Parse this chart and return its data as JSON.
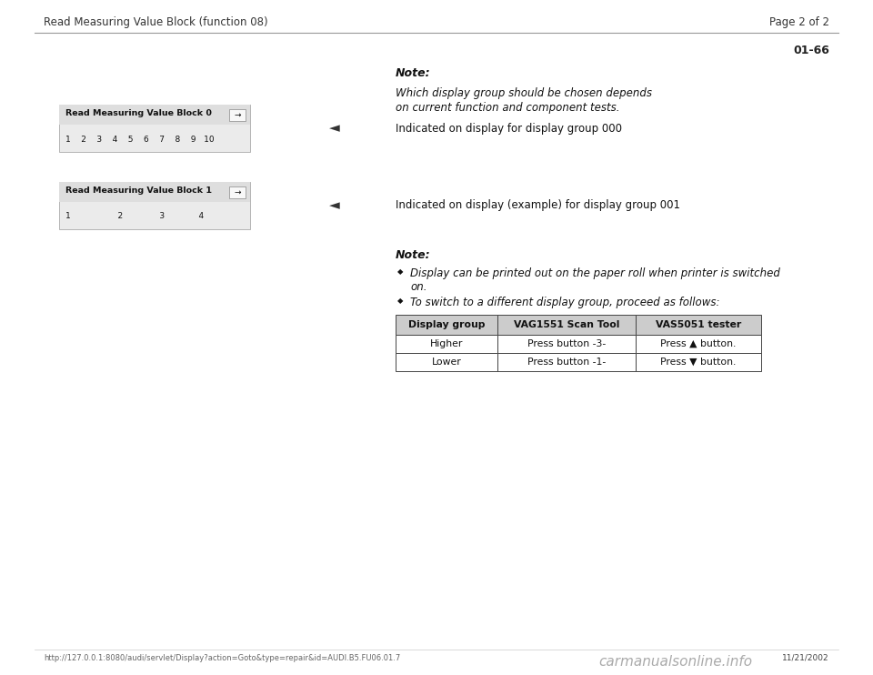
{
  "bg_color": "#ffffff",
  "header_title": "Read Measuring Value Block (function 08)",
  "header_right": "Page 2 of 2",
  "page_num": "01-66",
  "note_bold": "Note:",
  "note_text_line1": "Which display group should be chosen depends",
  "note_text_line2": "on current function and component tests.",
  "indicator1": "Indicated on display for display group 000",
  "indicator2": "Indicated on display (example) for display group 001",
  "note2_bold": "Note:",
  "bullet1_line1": "Display can be printed out on the paper roll when printer is switched",
  "bullet1_line2": "on.",
  "bullet2": "To switch to a different display group, proceed as follows:",
  "display_box1_title": "Read Measuring Value Block 0",
  "display_box1_numbers": "1    2    3    4    5    6    7    8    9   10",
  "display_box2_title": "Read Measuring Value Block 1",
  "display_box2_numbers": "1                  2              3             4",
  "table_headers": [
    "Display group",
    "VAG1551 Scan Tool",
    "VAS5051 tester"
  ],
  "table_row1": [
    "Higher",
    "Press button -3-",
    "Press ▲ button."
  ],
  "table_row2": [
    "Lower",
    "Press button -1-",
    "Press ▼ button."
  ],
  "footer_url": "http://127.0.0.1:8080/audi/servlet/Display?action=Goto&type=repair&id=AUDI.B5.FU06.01.7",
  "footer_date": "11/21/2002",
  "footer_logo": "carmanualsonline.info"
}
